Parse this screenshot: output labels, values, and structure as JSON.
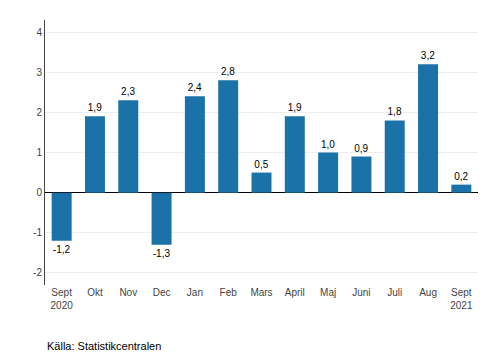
{
  "chart_data": {
    "type": "bar",
    "categories": [
      "Sept\n2020",
      "Okt",
      "Nov",
      "Dec",
      "Jan",
      "Feb",
      "Mars",
      "April",
      "Maj",
      "Juni",
      "Juli",
      "Aug",
      "Sept\n2021"
    ],
    "values": [
      -1.2,
      1.9,
      2.3,
      -1.3,
      2.4,
      2.8,
      0.5,
      1.9,
      1.0,
      0.9,
      1.8,
      3.2,
      0.2
    ],
    "value_labels": [
      "-1,2",
      "1,9",
      "2,3",
      "-1,3",
      "2,4",
      "2,8",
      "0,5",
      "1,9",
      "1,0",
      "0,9",
      "1,8",
      "3,2",
      "0,2"
    ],
    "data_labels": true,
    "color": "#1a72a8",
    "ylim": [
      -2.3,
      4.3
    ],
    "yticks": [
      -2,
      -1,
      0,
      1,
      2,
      3,
      4
    ],
    "grid": true,
    "annotations": [
      "Källa: Statistikcentralen"
    ]
  }
}
